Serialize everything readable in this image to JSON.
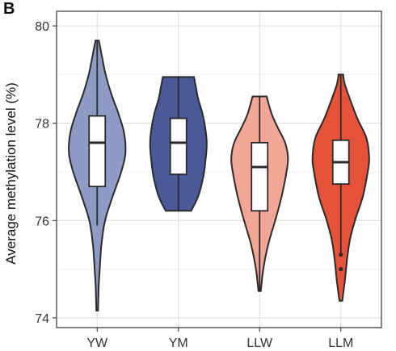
{
  "panel_label": "B",
  "chart_data": {
    "type": "violin",
    "title": "",
    "xlabel": "",
    "ylabel": "Average methylation level (%)",
    "ylim": [
      73.8,
      80.3
    ],
    "yticks": [
      74,
      76,
      78,
      80
    ],
    "ytick_labels": [
      "74",
      "76",
      "78",
      "80"
    ],
    "grid": true,
    "legend": "none",
    "categories": [
      "YW",
      "YM",
      "LLW",
      "LLM"
    ],
    "series": [
      {
        "category": "YW",
        "color": "#8e9bc4",
        "min": 74.15,
        "q1": 76.7,
        "median": 77.6,
        "q3": 78.15,
        "max": 79.7,
        "whisker_low": 75.9,
        "whisker_high": 79.7,
        "outliers": [],
        "density": [
          [
            74.15,
            0.03
          ],
          [
            74.6,
            0.05
          ],
          [
            75.0,
            0.09
          ],
          [
            75.5,
            0.15
          ],
          [
            76.0,
            0.28
          ],
          [
            76.5,
            0.55
          ],
          [
            77.0,
            0.85
          ],
          [
            77.4,
            1.0
          ],
          [
            77.8,
            0.95
          ],
          [
            78.2,
            0.75
          ],
          [
            78.6,
            0.5
          ],
          [
            79.0,
            0.3
          ],
          [
            79.4,
            0.16
          ],
          [
            79.7,
            0.06
          ]
        ]
      },
      {
        "category": "YM",
        "color": "#4a5998",
        "min": 76.2,
        "q1": 76.95,
        "median": 77.6,
        "q3": 78.1,
        "max": 78.95,
        "whisker_low": 76.2,
        "whisker_high": 78.95,
        "outliers": [],
        "density": [
          [
            76.2,
            0.45
          ],
          [
            76.5,
            0.7
          ],
          [
            76.9,
            0.88
          ],
          [
            77.3,
            0.97
          ],
          [
            77.6,
            1.0
          ],
          [
            77.9,
            0.95
          ],
          [
            78.2,
            0.85
          ],
          [
            78.5,
            0.7
          ],
          [
            78.8,
            0.6
          ],
          [
            78.95,
            0.55
          ]
        ]
      },
      {
        "category": "LLW",
        "color": "#f1a696",
        "min": 74.55,
        "q1": 76.2,
        "median": 77.1,
        "q3": 77.6,
        "max": 78.55,
        "whisker_low": 74.55,
        "whisker_high": 78.55,
        "outliers": [],
        "density": [
          [
            74.55,
            0.04
          ],
          [
            75.0,
            0.13
          ],
          [
            75.5,
            0.3
          ],
          [
            76.0,
            0.55
          ],
          [
            76.5,
            0.78
          ],
          [
            77.0,
            0.95
          ],
          [
            77.3,
            1.0
          ],
          [
            77.6,
            0.9
          ],
          [
            77.9,
            0.65
          ],
          [
            78.2,
            0.42
          ],
          [
            78.55,
            0.25
          ]
        ]
      },
      {
        "category": "LLM",
        "color": "#e5533a",
        "min": 74.35,
        "q1": 76.75,
        "median": 77.2,
        "q3": 77.65,
        "max": 79.0,
        "whisker_low": 75.3,
        "whisker_high": 79.0,
        "outliers": [
          75.3,
          75.0
        ],
        "density": [
          [
            74.35,
            0.05
          ],
          [
            74.8,
            0.15
          ],
          [
            75.2,
            0.22
          ],
          [
            75.6,
            0.32
          ],
          [
            76.0,
            0.5
          ],
          [
            76.5,
            0.78
          ],
          [
            77.0,
            0.95
          ],
          [
            77.3,
            1.0
          ],
          [
            77.7,
            0.9
          ],
          [
            78.1,
            0.58
          ],
          [
            78.5,
            0.32
          ],
          [
            78.8,
            0.14
          ],
          [
            79.0,
            0.08
          ]
        ]
      }
    ]
  }
}
